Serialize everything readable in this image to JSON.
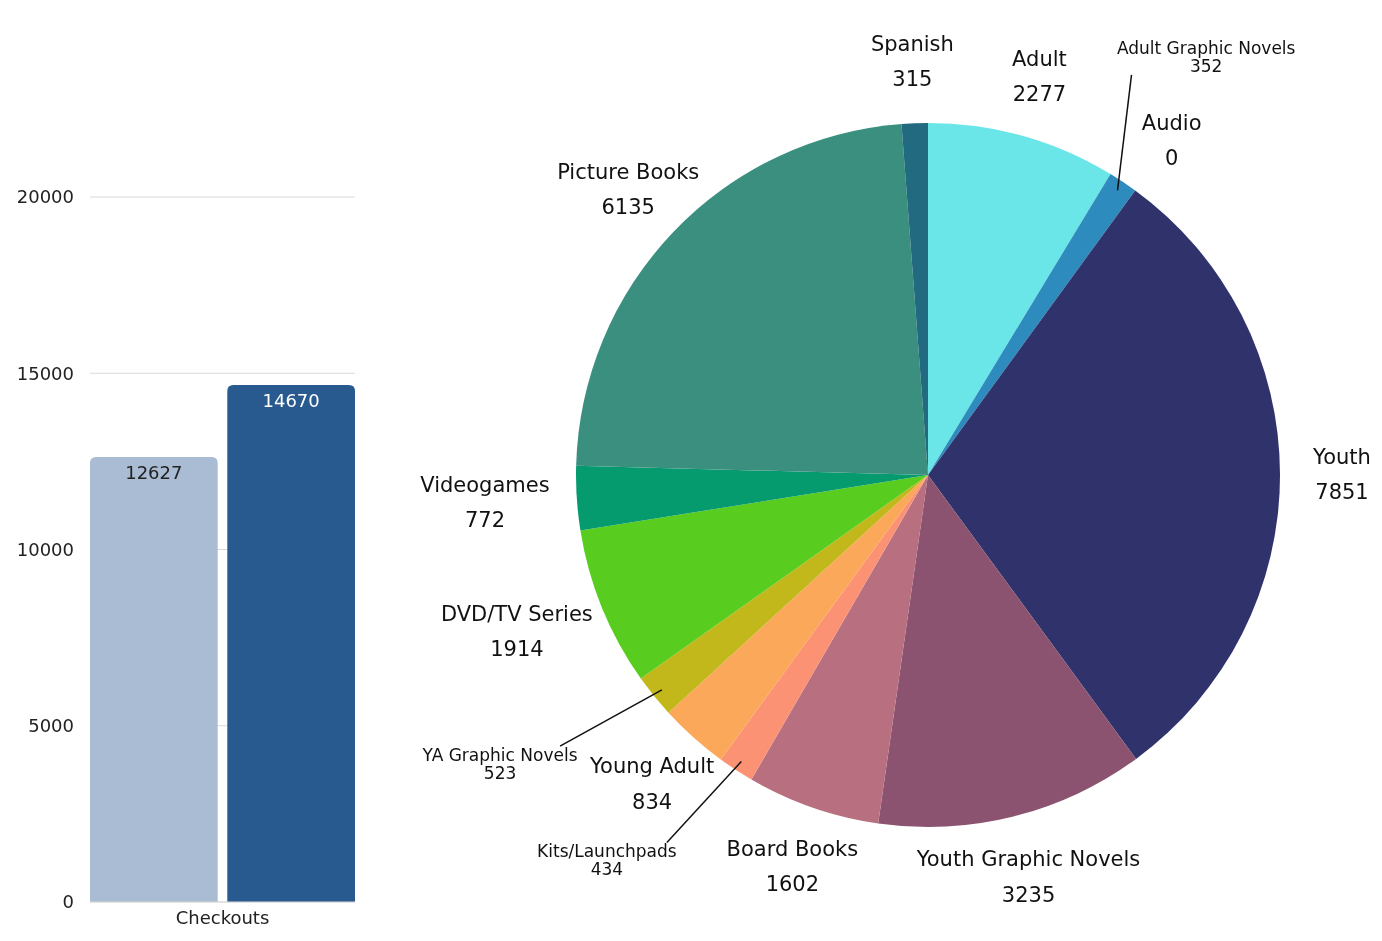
{
  "chart_data": [
    {
      "type": "bar",
      "categories": [
        null,
        null
      ],
      "values": [
        12627,
        14670
      ],
      "colors": [
        "#a9bcd3",
        "#285a8f"
      ],
      "xlabel": "Checkouts",
      "ylim": [
        0,
        20000
      ],
      "yticks": [
        0,
        5000,
        10000,
        15000,
        20000
      ],
      "grid": "y",
      "data_labels": true
    },
    {
      "type": "pie",
      "categories": [
        "Adult",
        "Adult Graphic Novels",
        "Audio",
        "Youth",
        "Youth Graphic Novels",
        "Board Books",
        "Kits/Launchpads",
        "Young Adult",
        "YA Graphic Novels",
        "DVD/TV Series",
        "Videogames",
        "Picture Books",
        "Spanish"
      ],
      "values": [
        2277,
        352,
        0,
        7851,
        3235,
        1602,
        434,
        834,
        523,
        1914,
        772,
        6135,
        315
      ],
      "colors": [
        "#6ae5e8",
        "#2e8bbd",
        "#1f5f8b",
        "#30336b",
        "#8b5370",
        "#b87080",
        "#fc9274",
        "#fca85a",
        "#c2b81b",
        "#58cc1f",
        "#069b6f",
        "#3a8f7e",
        "#226a80"
      ],
      "value_labels": [
        "2277",
        "352",
        "0",
        "7851",
        "3235",
        "1602",
        "434",
        "834",
        "523",
        "1914",
        "772",
        "6135",
        "315"
      ]
    }
  ]
}
